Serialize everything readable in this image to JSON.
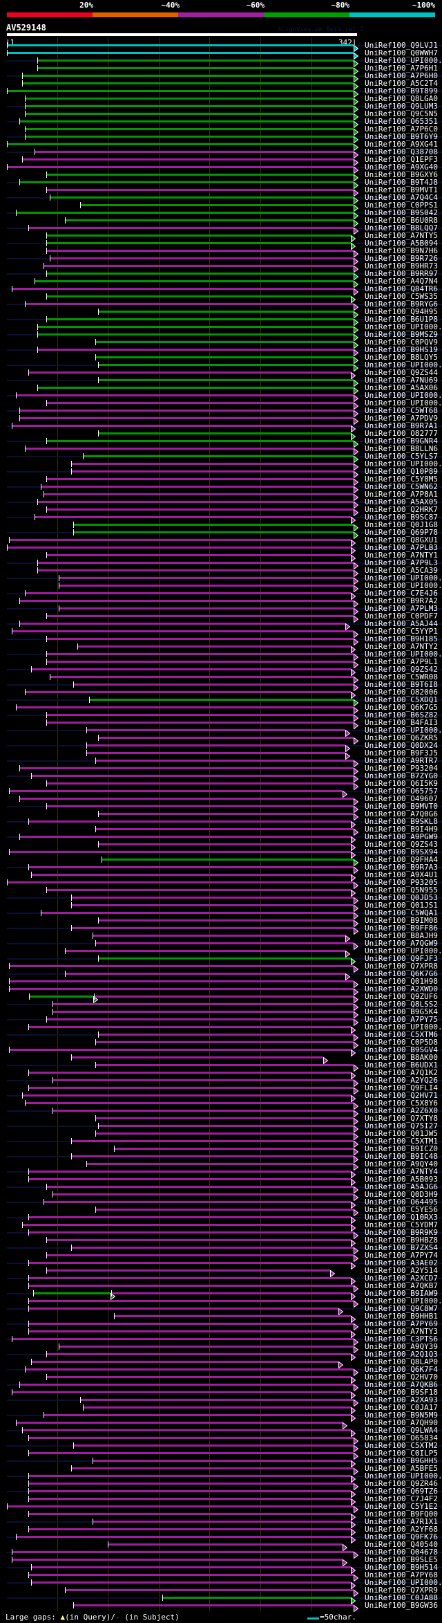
{
  "header": {
    "identity_scale": [
      "20%",
      "~40%",
      "~60%",
      "~80%",
      "~100%"
    ],
    "identity_colors": [
      "#f00020",
      "#e06000",
      "#a020a0",
      "#00a000",
      "#00c0c0"
    ],
    "query_name": "AV529148",
    "version": "AlignView.pm Beta rel.7",
    "ruler_start": "|1",
    "ruler_end": "342|"
  },
  "chart_data": {
    "type": "alignment",
    "query_length": 342,
    "grid_every": 50,
    "color_key": {
      "C": "#00c0c0",
      "G": "#009900",
      "P": "#a21ca2"
    },
    "rows_format": [
      "subject",
      "identity_color",
      "query_start",
      "query_end",
      "green_segment_end(optional)"
    ],
    "rows": [
      [
        "UniRef100_Q9LVJ1",
        "C",
        1,
        342
      ],
      [
        "UniRef100_Q0WWH7",
        "C",
        1,
        342
      ],
      [
        "UniRef100_UPI000..",
        "G",
        31,
        342
      ],
      [
        "UniRef100_A7P6H1",
        "G",
        31,
        342
      ],
      [
        "UniRef100_A7P6H0",
        "G",
        16,
        342
      ],
      [
        "UniRef100_A5C2T4",
        "G",
        16,
        342
      ],
      [
        "UniRef100_B9T899",
        "G",
        1,
        342
      ],
      [
        "UniRef100_Q8LGA0",
        "G",
        19,
        342
      ],
      [
        "UniRef100_Q9LUM3",
        "G",
        19,
        342
      ],
      [
        "UniRef100_Q9C5N5",
        "G",
        19,
        342
      ],
      [
        "UniRef100_O65351",
        "G",
        13,
        342
      ],
      [
        "UniRef100_A7P6C0",
        "G",
        19,
        342
      ],
      [
        "UniRef100_B9T6Y9",
        "G",
        19,
        342
      ],
      [
        "UniRef100_A9XG41",
        "G",
        1,
        342
      ],
      [
        "UniRef100_Q38708",
        "P",
        28,
        342
      ],
      [
        "UniRef100_Q1EPF3",
        "P",
        16,
        342
      ],
      [
        "UniRef100_A9XG40",
        "P",
        1,
        342
      ],
      [
        "UniRef100_B9GXY6",
        "G",
        40,
        342
      ],
      [
        "UniRef100_B9T4J8",
        "G",
        13,
        342
      ],
      [
        "UniRef100_B9MVT1",
        "P",
        40,
        342
      ],
      [
        "UniRef100_A7Q4C4",
        "G",
        43,
        342
      ],
      [
        "UniRef100_C0PPS1",
        "G",
        73,
        342
      ],
      [
        "UniRef100_B9S042",
        "G",
        10,
        342
      ],
      [
        "UniRef100_B6U0R8",
        "G",
        58,
        342
      ],
      [
        "UniRef100_B8LQQ7",
        "P",
        22,
        342
      ],
      [
        "UniRef100_A7NTY5",
        "G",
        40,
        339
      ],
      [
        "UniRef100_A5B094",
        "G",
        40,
        339
      ],
      [
        "UniRef100_B9N7H6",
        "P",
        40,
        342
      ],
      [
        "UniRef100_B9R726",
        "P",
        43,
        342
      ],
      [
        "UniRef100_B9HR73",
        "P",
        37,
        342
      ],
      [
        "UniRef100_B9RR97",
        "G",
        40,
        342
      ],
      [
        "UniRef100_A4Q7N4",
        "G",
        28,
        342
      ],
      [
        "UniRef100_Q84TR6",
        "P",
        6,
        342
      ],
      [
        "UniRef100_C5WS35",
        "G",
        40,
        339
      ],
      [
        "UniRef100_B9RYG6",
        "P",
        19,
        342
      ],
      [
        "UniRef100_Q94H95",
        "G",
        91,
        342
      ],
      [
        "UniRef100_B6U1P8",
        "G",
        40,
        342
      ],
      [
        "UniRef100_UPI000..",
        "G",
        31,
        342
      ],
      [
        "UniRef100_B9MSZ9",
        "G",
        31,
        342
      ],
      [
        "UniRef100_C0PQV9",
        "G",
        88,
        342
      ],
      [
        "UniRef100_B9HS19",
        "P",
        31,
        342
      ],
      [
        "UniRef100_B8LQY5",
        "G",
        88,
        342
      ],
      [
        "UniRef100_UPI000..",
        "G",
        91,
        342
      ],
      [
        "UniRef100_Q9ZS44",
        "P",
        22,
        339
      ],
      [
        "UniRef100_A7NU69",
        "G",
        91,
        342
      ],
      [
        "UniRef100_A5AX06",
        "G",
        31,
        342
      ],
      [
        "UniRef100_UPI000..",
        "P",
        10,
        342
      ],
      [
        "UniRef100_UPI000..",
        "P",
        40,
        342
      ],
      [
        "UniRef100_C5WT68",
        "P",
        13,
        342
      ],
      [
        "UniRef100_A7PDV9",
        "P",
        13,
        342
      ],
      [
        "UniRef100_B9R7A1",
        "P",
        6,
        339
      ],
      [
        "UniRef100_O82777",
        "G",
        91,
        339
      ],
      [
        "UniRef100_B9GNR4",
        "G",
        40,
        342
      ],
      [
        "UniRef100_B8LLN6",
        "P",
        19,
        342
      ],
      [
        "UniRef100_C5YLS7",
        "G",
        76,
        342
      ],
      [
        "UniRef100_UPI000..",
        "P",
        64,
        342
      ],
      [
        "UniRef100_Q10P89",
        "P",
        64,
        342
      ],
      [
        "UniRef100_C5Y8M5",
        "P",
        40,
        342
      ],
      [
        "UniRef100_C5WN62",
        "P",
        34,
        342
      ],
      [
        "UniRef100_A7P8A1",
        "P",
        37,
        342
      ],
      [
        "UniRef100_A5AX05",
        "P",
        31,
        342
      ],
      [
        "UniRef100_Q2HRK7",
        "P",
        40,
        342
      ],
      [
        "UniRef100_B9SC87",
        "P",
        28,
        339
      ],
      [
        "UniRef100_Q0J1G8",
        "G",
        66,
        342
      ],
      [
        "UniRef100_Q69P78",
        "G",
        66,
        342
      ],
      [
        "UniRef100_Q8GXU1",
        "P",
        3,
        339
      ],
      [
        "UniRef100_A7PLB3",
        "P",
        1,
        339
      ],
      [
        "UniRef100_A7NTY1",
        "P",
        40,
        339
      ],
      [
        "UniRef100_A7P9L3",
        "P",
        31,
        342
      ],
      [
        "UniRef100_A5CA39",
        "P",
        31,
        342
      ],
      [
        "UniRef100_UPI000..",
        "P",
        52,
        342
      ],
      [
        "UniRef100_UPI000..",
        "P",
        52,
        342
      ],
      [
        "UniRef100_C7E4J6",
        "P",
        19,
        339
      ],
      [
        "UniRef100_B9R7A2",
        "P",
        13,
        342
      ],
      [
        "UniRef100_A7PLM3",
        "P",
        52,
        342
      ],
      [
        "UniRef100_C0PDF7",
        "P",
        40,
        342
      ],
      [
        "UniRef100_A5AJ44",
        "P",
        13,
        334
      ],
      [
        "UniRef100_C5YYP1",
        "P",
        6,
        342
      ],
      [
        "UniRef100_B9H185",
        "P",
        40,
        342
      ],
      [
        "UniRef100_A7NTY2",
        "P",
        70,
        339
      ],
      [
        "UniRef100_UPI000..",
        "P",
        40,
        342
      ],
      [
        "UniRef100_A7P9L1",
        "P",
        40,
        342
      ],
      [
        "UniRef100_Q9ZS42",
        "P",
        25,
        339
      ],
      [
        "UniRef100_C5WR08",
        "P",
        43,
        342
      ],
      [
        "UniRef100_B9T6I8",
        "P",
        66,
        342
      ],
      [
        "UniRef100_O82006",
        "P",
        19,
        339
      ],
      [
        "UniRef100_C5XDQ1",
        "G",
        82,
        342
      ],
      [
        "UniRef100_Q6K7G5",
        "P",
        10,
        342
      ],
      [
        "UniRef100_B6SZ82",
        "P",
        40,
        342
      ],
      [
        "UniRef100_B4FAI3",
        "P",
        40,
        342
      ],
      [
        "UniRef100_UPI000..",
        "P",
        79,
        334
      ],
      [
        "UniRef100_Q6ZKR5",
        "P",
        91,
        342
      ],
      [
        "UniRef100_Q0DX24",
        "P",
        79,
        334
      ],
      [
        "UniRef100_B9F3J5",
        "P",
        79,
        334
      ],
      [
        "UniRef100_A9RTR7",
        "P",
        88,
        342
      ],
      [
        "UniRef100_P93204",
        "P",
        13,
        342
      ],
      [
        "UniRef100_B7ZYG0",
        "P",
        25,
        342
      ],
      [
        "UniRef100_Q6I5K9",
        "P",
        40,
        342
      ],
      [
        "UniRef100_O65757",
        "P",
        3,
        331
      ],
      [
        "UniRef100_O49607",
        "P",
        13,
        342
      ],
      [
        "UniRef100_B9MVT0",
        "P",
        40,
        342
      ],
      [
        "UniRef100_A7Q0G6",
        "P",
        91,
        342
      ],
      [
        "UniRef100_B9SKL8",
        "P",
        22,
        339
      ],
      [
        "UniRef100_B9I4H9",
        "P",
        88,
        342
      ],
      [
        "UniRef100_A9PGW9",
        "P",
        13,
        339
      ],
      [
        "UniRef100_Q9ZS43",
        "P",
        91,
        339
      ],
      [
        "UniRef100_B9SX94",
        "P",
        3,
        339
      ],
      [
        "UniRef100_Q9FHA4",
        "G",
        94,
        342
      ],
      [
        "UniRef100_B9R7A3",
        "P",
        22,
        342
      ],
      [
        "UniRef100_A9X4U1",
        "P",
        25,
        339
      ],
      [
        "UniRef100_P93205",
        "P",
        1,
        342
      ],
      [
        "UniRef100_Q5N955",
        "P",
        40,
        339
      ],
      [
        "UniRef100_Q0JD53",
        "P",
        64,
        342
      ],
      [
        "UniRef100_Q01JS1",
        "P",
        64,
        342
      ],
      [
        "UniRef100_C5WQA1",
        "P",
        34,
        342
      ],
      [
        "UniRef100_B9IM08",
        "P",
        91,
        342
      ],
      [
        "UniRef100_B9FF86",
        "P",
        64,
        342
      ],
      [
        "UniRef100_B8AJH9",
        "P",
        85,
        334
      ],
      [
        "UniRef100_A7QGW9",
        "P",
        88,
        342
      ],
      [
        "UniRef100_UPI000..",
        "P",
        58,
        334
      ],
      [
        "UniRef100_Q9FJF3",
        "G",
        91,
        339
      ],
      [
        "UniRef100_Q7XPR8",
        "P",
        3,
        342
      ],
      [
        "UniRef100_Q6K7G6",
        "P",
        58,
        334
      ],
      [
        "UniRef100_Q01H98",
        "P",
        3,
        342
      ],
      [
        "UniRef100_A2XWD0",
        "P",
        3,
        342
      ],
      [
        "UniRef100_Q9ZUF6",
        "G",
        23,
        342,
        86
      ],
      [
        "UniRef100_Q8LSS2",
        "P",
        46,
        342
      ],
      [
        "UniRef100_B9G5K4",
        "P",
        46,
        342
      ],
      [
        "UniRef100_A7PY75",
        "P",
        40,
        342
      ],
      [
        "UniRef100_UPI000..",
        "P",
        22,
        339
      ],
      [
        "UniRef100_C5XTM6",
        "P",
        91,
        342
      ],
      [
        "UniRef100_C0P5D8",
        "P",
        88,
        342
      ],
      [
        "UniRef100_B9SGV4",
        "P",
        3,
        339
      ],
      [
        "UniRef100_B8AK00",
        "P",
        64,
        312
      ],
      [
        "UniRef100_B6UDX1",
        "P",
        88,
        342
      ],
      [
        "UniRef100_A7Q1K2",
        "P",
        22,
        339
      ],
      [
        "UniRef100_A2YQ26",
        "P",
        46,
        342
      ],
      [
        "UniRef100_Q9FLI4",
        "P",
        22,
        342
      ],
      [
        "UniRef100_Q2HV71",
        "P",
        16,
        339
      ],
      [
        "UniRef100_C5X8Y6",
        "P",
        19,
        342
      ],
      [
        "UniRef100_A2Z6X0",
        "P",
        46,
        342
      ],
      [
        "UniRef100_Q7XTY8",
        "P",
        88,
        342
      ],
      [
        "UniRef100_Q75I27",
        "P",
        91,
        342
      ],
      [
        "UniRef100_Q01JW5",
        "P",
        88,
        342
      ],
      [
        "UniRef100_C5XTM1",
        "P",
        64,
        342
      ],
      [
        "UniRef100_B9ICZ0",
        "P",
        106,
        342
      ],
      [
        "UniRef100_B9IC48",
        "P",
        64,
        342
      ],
      [
        "UniRef100_A9QY40",
        "P",
        79,
        342
      ],
      [
        "UniRef100_A7NTY4",
        "P",
        22,
        339
      ],
      [
        "UniRef100_A5B093",
        "P",
        22,
        339
      ],
      [
        "UniRef100_A5AJG6",
        "P",
        40,
        342
      ],
      [
        "UniRef100_Q0D3H9",
        "P",
        46,
        342
      ],
      [
        "UniRef100_O64495",
        "P",
        37,
        339
      ],
      [
        "UniRef100_C5YE56",
        "P",
        88,
        342
      ],
      [
        "UniRef100_Q10RX3",
        "P",
        22,
        339
      ],
      [
        "UniRef100_C5YDM7",
        "P",
        16,
        339
      ],
      [
        "UniRef100_B9R9K9",
        "P",
        22,
        342
      ],
      [
        "UniRef100_B9HBZ8",
        "P",
        40,
        339
      ],
      [
        "UniRef100_B7ZXS4",
        "P",
        64,
        342
      ],
      [
        "UniRef100_A7PY74",
        "P",
        40,
        342
      ],
      [
        "UniRef100_A3AE02",
        "P",
        22,
        339
      ],
      [
        "UniRef100_A2Y514",
        "P",
        40,
        319
      ],
      [
        "UniRef100_A2XCD7",
        "P",
        22,
        339
      ],
      [
        "UniRef100_A7QKB7",
        "P",
        22,
        342
      ],
      [
        "UniRef100_B9IAW9",
        "G",
        27,
        339,
        103
      ],
      [
        "UniRef100_UPI000..",
        "P",
        22,
        342
      ],
      [
        "UniRef100_Q9C8W7",
        "P",
        22,
        327
      ],
      [
        "UniRef100_B9HHB1",
        "P",
        106,
        339
      ],
      [
        "UniRef100_A7PY69",
        "P",
        22,
        342
      ],
      [
        "UniRef100_A7NTY3",
        "P",
        22,
        339
      ],
      [
        "UniRef100_C3PTS6",
        "P",
        6,
        342
      ],
      [
        "UniRef100_A9QY39",
        "P",
        52,
        342
      ],
      [
        "UniRef100_A2Q1Q3",
        "P",
        40,
        339
      ],
      [
        "UniRef100_Q8LAP0",
        "P",
        25,
        327
      ],
      [
        "UniRef100_Q6K7F4",
        "P",
        19,
        342
      ],
      [
        "UniRef100_Q2HV70",
        "P",
        40,
        339
      ],
      [
        "UniRef100_A7QKB6",
        "P",
        13,
        342
      ],
      [
        "UniRef100_B9SF18",
        "P",
        6,
        339
      ],
      [
        "UniRef100_A2XA93",
        "P",
        73,
        342
      ],
      [
        "UniRef100_C0JA17",
        "P",
        76,
        339
      ],
      [
        "UniRef100_B9N5M9",
        "P",
        37,
        339
      ],
      [
        "UniRef100_A7QH90",
        "P",
        10,
        331
      ],
      [
        "UniRef100_Q9LWA4",
        "P",
        16,
        339
      ],
      [
        "UniRef100_O65834",
        "P",
        22,
        342
      ],
      [
        "UniRef100_C5XTM2",
        "P",
        66,
        342
      ],
      [
        "UniRef100_C0ILP5",
        "P",
        22,
        342
      ],
      [
        "UniRef100_B9GHH5",
        "P",
        85,
        339
      ],
      [
        "UniRef100_A5BFE5",
        "P",
        64,
        342
      ],
      [
        "UniRef100_UPI000..",
        "P",
        22,
        339
      ],
      [
        "UniRef100_Q9ZR46",
        "P",
        22,
        342
      ],
      [
        "UniRef100_Q69TZ6",
        "P",
        22,
        339
      ],
      [
        "UniRef100_C7J4F2",
        "P",
        22,
        339
      ],
      [
        "UniRef100_C5Y1E2",
        "P",
        1,
        342
      ],
      [
        "UniRef100_B9FQ00",
        "P",
        22,
        339
      ],
      [
        "UniRef100_A7R1X1",
        "P",
        85,
        339
      ],
      [
        "UniRef100_A2YF68",
        "P",
        22,
        339
      ],
      [
        "UniRef100_Q9FK76",
        "P",
        10,
        339
      ],
      [
        "UniRef100_Q40540",
        "P",
        100,
        331
      ],
      [
        "UniRef100_O04678",
        "P",
        6,
        342
      ],
      [
        "UniRef100_B9SLE5",
        "P",
        6,
        331
      ],
      [
        "UniRef100_B9H514",
        "P",
        25,
        339
      ],
      [
        "UniRef100_A7PY68",
        "P",
        22,
        342
      ],
      [
        "UniRef100_UPI000..",
        "P",
        25,
        339
      ],
      [
        "UniRef100_Q7XPR9",
        "P",
        58,
        342
      ],
      [
        "UniRef100_C0JA88",
        "G",
        154,
        339
      ],
      [
        "UniRef100_B9GW36",
        "P",
        66,
        342
      ]
    ]
  },
  "footer": {
    "gaps_label": "Large gaps:",
    "query_gap_symbol": "▲",
    "query_gap_text": "(in Query)/",
    "subject_gap_symbol": "-",
    "subject_gap_text": " (in Subject)",
    "legend_text": "=50char."
  }
}
